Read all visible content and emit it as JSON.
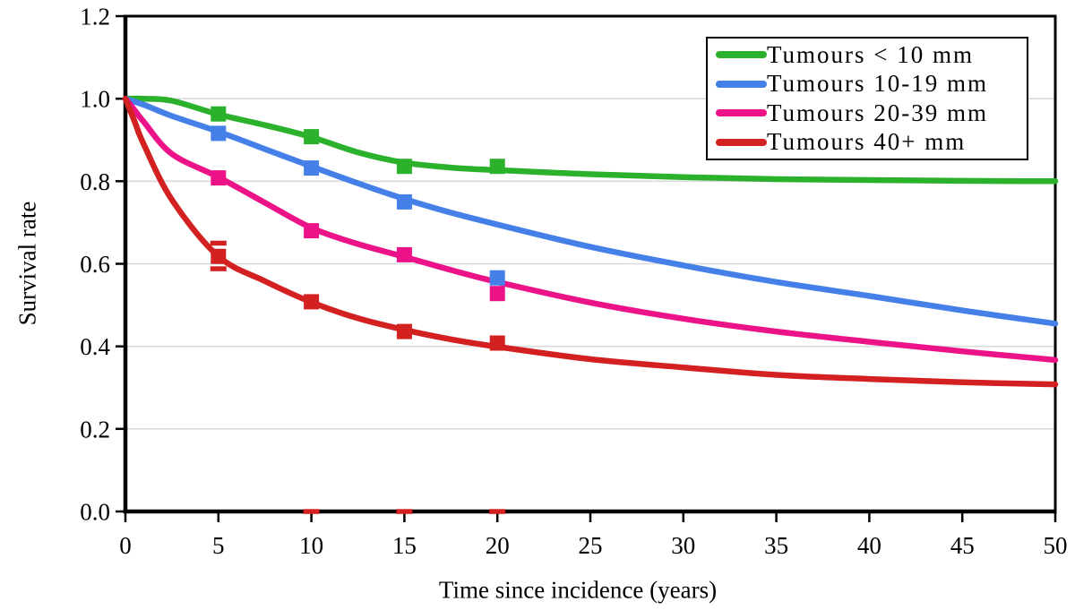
{
  "chart_data": {
    "type": "line",
    "title": "",
    "xlabel": "Time since incidence (years)",
    "ylabel": "Survival rate",
    "xlim": [
      0,
      50
    ],
    "ylim": [
      0,
      1.2
    ],
    "x_tick_labels": [
      "0",
      "5",
      "10",
      "15",
      "20",
      "25",
      "30",
      "35",
      "40",
      "45",
      "50"
    ],
    "y_tick_labels": [
      "0.0",
      "0.2",
      "0.4",
      "0.6",
      "0.8",
      "1.0",
      "1.2"
    ],
    "grid": "horizontal-only",
    "gridline_color": "#dadada",
    "axis_color": "#000000",
    "legend_position": "top-right-inside",
    "series": [
      {
        "name": "Tumours < 10 mm",
        "color": "#2bb12b",
        "markers": [
          [
            5,
            0.963
          ],
          [
            10,
            0.908
          ],
          [
            15,
            0.836
          ],
          [
            20,
            0.836
          ]
        ],
        "curve": [
          [
            0,
            1.0
          ],
          [
            1,
            1.0
          ],
          [
            2.5,
            0.995
          ],
          [
            5,
            0.962
          ],
          [
            7.5,
            0.936
          ],
          [
            10,
            0.907
          ],
          [
            12.5,
            0.87
          ],
          [
            15,
            0.845
          ],
          [
            17.5,
            0.833
          ],
          [
            20,
            0.827
          ],
          [
            25,
            0.817
          ],
          [
            30,
            0.81
          ],
          [
            35,
            0.805
          ],
          [
            40,
            0.803
          ],
          [
            45,
            0.801
          ],
          [
            50,
            0.8
          ]
        ]
      },
      {
        "name": "Tumours 10-19 mm",
        "color": "#4480e8",
        "markers": [
          [
            5,
            0.916
          ],
          [
            10,
            0.832
          ],
          [
            15,
            0.75
          ],
          [
            20,
            0.566
          ]
        ],
        "curve": [
          [
            0,
            1.0
          ],
          [
            1,
            0.985
          ],
          [
            2.5,
            0.958
          ],
          [
            5,
            0.92
          ],
          [
            7.5,
            0.878
          ],
          [
            10,
            0.836
          ],
          [
            12.5,
            0.795
          ],
          [
            15,
            0.757
          ],
          [
            17.5,
            0.724
          ],
          [
            20,
            0.695
          ],
          [
            25,
            0.641
          ],
          [
            30,
            0.596
          ],
          [
            35,
            0.556
          ],
          [
            40,
            0.522
          ],
          [
            45,
            0.487
          ],
          [
            50,
            0.455
          ]
        ]
      },
      {
        "name": "Tumours 20-39 mm",
        "color": "#ec1288",
        "markers": [
          [
            5,
            0.808
          ],
          [
            10,
            0.68
          ],
          [
            15,
            0.622
          ],
          [
            20,
            0.528
          ]
        ],
        "curve": [
          [
            0,
            1.0
          ],
          [
            0.5,
            0.972
          ],
          [
            1,
            0.943
          ],
          [
            2.5,
            0.866
          ],
          [
            5,
            0.81
          ],
          [
            7.5,
            0.748
          ],
          [
            10,
            0.687
          ],
          [
            12.5,
            0.648
          ],
          [
            15,
            0.617
          ],
          [
            17.5,
            0.585
          ],
          [
            20,
            0.556
          ],
          [
            25,
            0.506
          ],
          [
            30,
            0.467
          ],
          [
            35,
            0.436
          ],
          [
            40,
            0.411
          ],
          [
            45,
            0.388
          ],
          [
            50,
            0.367
          ]
        ]
      },
      {
        "name": "Tumours 40+ mm",
        "color": "#d32020",
        "markers": [
          [
            5,
            0.618
          ],
          [
            10,
            0.508
          ],
          [
            15,
            0.436
          ],
          [
            20,
            0.408
          ]
        ],
        "curve": [
          [
            0,
            1.0
          ],
          [
            0.5,
            0.944
          ],
          [
            1,
            0.888
          ],
          [
            2.5,
            0.755
          ],
          [
            5,
            0.618
          ],
          [
            7.5,
            0.558
          ],
          [
            10,
            0.507
          ],
          [
            12.5,
            0.468
          ],
          [
            15,
            0.44
          ],
          [
            17.5,
            0.417
          ],
          [
            20,
            0.399
          ],
          [
            25,
            0.369
          ],
          [
            30,
            0.349
          ],
          [
            35,
            0.331
          ],
          [
            40,
            0.321
          ],
          [
            45,
            0.313
          ],
          [
            50,
            0.308
          ]
        ]
      }
    ],
    "extra_marks": {
      "description": "small red dash markers",
      "color": "#d32020",
      "dashes": [
        [
          5,
          0.65
        ],
        [
          5,
          0.588
        ],
        [
          10,
          0.0
        ],
        [
          15,
          0.0
        ],
        [
          20,
          0.0
        ]
      ]
    }
  }
}
